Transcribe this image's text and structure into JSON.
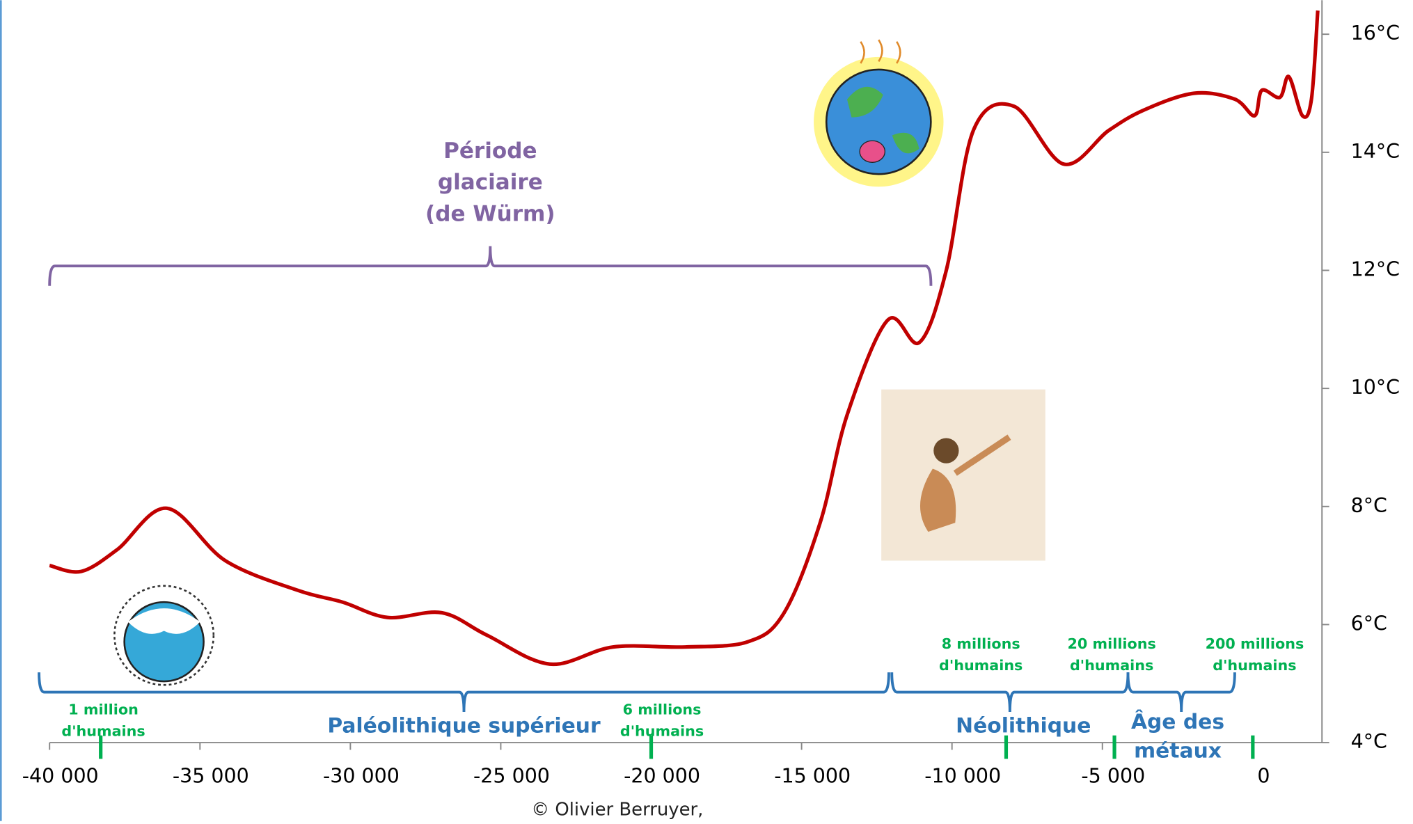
{
  "chart_data": {
    "type": "line",
    "x": [
      -40000,
      -38950,
      -37750,
      -36100,
      -34150,
      -31750,
      -30260,
      -28760,
      -26960,
      -25460,
      -23370,
      -21270,
      -18870,
      -16780,
      -15580,
      -14380,
      -13480,
      -12130,
      -11080,
      -10190,
      -9290,
      -7940,
      -6290,
      -4790,
      -3600,
      -1950,
      -600,
      60,
      300,
      900,
      1200,
      1650,
      1950,
      2160
    ],
    "values": [
      7.0,
      6.9,
      7.27,
      7.97,
      7.08,
      6.58,
      6.38,
      6.12,
      6.2,
      5.82,
      5.33,
      5.62,
      5.62,
      5.71,
      6.2,
      7.73,
      9.56,
      11.16,
      10.78,
      12.0,
      14.37,
      14.78,
      13.8,
      14.37,
      14.72,
      15.0,
      14.9,
      14.62,
      15.05,
      14.93,
      15.28,
      14.62,
      14.9,
      16.4
    ],
    "color": "#c00000",
    "xlim": [
      -40000,
      2300
    ],
    "xticks": [
      {
        "value": -40000,
        "label": "-40 000"
      },
      {
        "value": -35000,
        "label": "-35 000"
      },
      {
        "value": -30000,
        "label": "-30 000"
      },
      {
        "value": -25000,
        "label": "-25 000"
      },
      {
        "value": -20000,
        "label": "-20 000"
      },
      {
        "value": -15000,
        "label": "-15 000"
      },
      {
        "value": -10000,
        "label": "-10 000"
      },
      {
        "value": -5000,
        "label": "-5 000"
      },
      0
    ],
    "ylim": [
      4,
      16.5
    ],
    "yticks": [
      {
        "value": 4,
        "label": "4°C"
      },
      {
        "value": 6,
        "label": "6°C"
      },
      {
        "value": 8,
        "label": "8°C"
      },
      {
        "value": 10,
        "label": "10°C"
      },
      {
        "value": 12,
        "label": "12°C"
      },
      {
        "value": 14,
        "label": "14°C"
      },
      {
        "value": 16,
        "label": "16°C"
      }
    ],
    "glacial": {
      "lines": [
        "Période",
        "glaciaire",
        "(de Würm)"
      ],
      "range": [
        -40000,
        -10700
      ]
    },
    "eras": [
      {
        "lines": [
          "Paléolithique supérieur"
        ],
        "range": [
          -40350,
          -12100
        ]
      },
      {
        "lines": [
          "Néolithique"
        ],
        "range": [
          -12000,
          -4150
        ]
      },
      {
        "lines": [
          "Âge des",
          "métaux"
        ],
        "range": [
          -4150,
          -600
        ]
      }
    ],
    "population": [
      {
        "x": -38300,
        "lines": [
          "1 million",
          "d'humains"
        ]
      },
      {
        "x": -20000,
        "lines": [
          "6 millions",
          "d'humains"
        ]
      },
      {
        "x": -8200,
        "lines": [
          "8 millions",
          "d'humains"
        ]
      },
      {
        "x": -4600,
        "lines": [
          "20 millions",
          "d'humains"
        ]
      },
      {
        "x": 0,
        "lines": [
          "200 millions",
          "d'humains"
        ]
      }
    ],
    "credit": "© Olivier Berruyer,"
  }
}
